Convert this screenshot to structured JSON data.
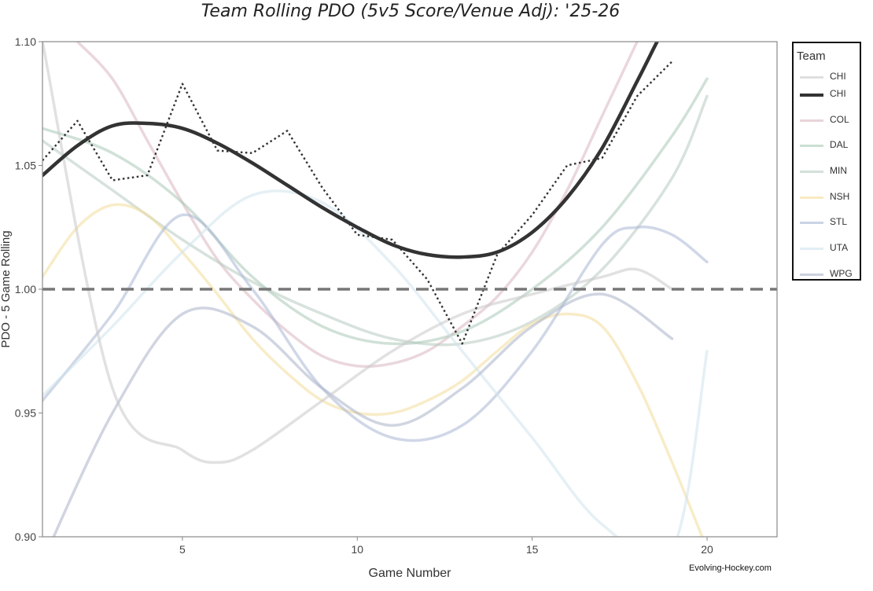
{
  "chart_data": {
    "type": "line",
    "title": "Team Rolling PDO (5v5 Score/Venue Adj): '25-26",
    "xlabel": "Game Number",
    "ylabel": "PDO - 5 Game Rolling",
    "xlim": [
      1,
      22
    ],
    "ylim": [
      0.9,
      1.1
    ],
    "x_ticks": [
      5,
      10,
      15,
      20
    ],
    "y_ticks": [
      "0.90",
      "0.95",
      "1.00",
      "1.05",
      "1.10"
    ],
    "reference_line": 1.0,
    "grid": false,
    "legend_title": "Team",
    "legend_position": "right",
    "credit": "Evolving-Hockey.com",
    "legend": [
      {
        "label": "CHI",
        "color": "#c9c9c9",
        "style": "faded"
      },
      {
        "label": "CHI",
        "color": "#333333",
        "style": "bold"
      },
      {
        "label": "COL",
        "color": "#d8b7c0",
        "style": "faded"
      },
      {
        "label": "DAL",
        "color": "#a9c9b6",
        "style": "faded"
      },
      {
        "label": "MIN",
        "color": "#b7cbbf",
        "style": "faded"
      },
      {
        "label": "NSH",
        "color": "#f3dc9a",
        "style": "faded"
      },
      {
        "label": "STL",
        "color": "#a9b7d3",
        "style": "faded"
      },
      {
        "label": "UTA",
        "color": "#cfe3ec",
        "style": "faded"
      },
      {
        "label": "WPG",
        "color": "#aab3c8",
        "style": "faded"
      }
    ],
    "series": [
      {
        "name": "CHI",
        "kind": "raw",
        "color": "#333333",
        "x": [
          1,
          2,
          3,
          4,
          5,
          6,
          7,
          8,
          9,
          10,
          11,
          12,
          13,
          14,
          15,
          16,
          17,
          18,
          19
        ],
        "y": [
          1.052,
          1.068,
          1.044,
          1.046,
          1.083,
          1.056,
          1.055,
          1.064,
          1.041,
          1.022,
          1.02,
          1.004,
          0.978,
          1.014,
          1.03,
          1.05,
          1.053,
          1.078,
          1.092
        ]
      },
      {
        "name": "CHI",
        "kind": "smooth",
        "color": "#333333",
        "x": [
          1,
          2,
          3,
          4,
          5,
          6,
          7,
          8,
          9,
          10,
          11,
          12,
          13,
          14,
          15,
          16,
          17,
          18,
          18.5,
          19
        ],
        "y": [
          1.046,
          1.058,
          1.066,
          1.067,
          1.065,
          1.059,
          1.051,
          1.042,
          1.033,
          1.025,
          1.018,
          1.014,
          1.013,
          1.015,
          1.023,
          1.037,
          1.057,
          1.084,
          1.098,
          1.112
        ]
      },
      {
        "name": "COL",
        "kind": "smooth",
        "color": "#d8b7c0",
        "x": [
          2,
          3,
          4,
          5,
          6,
          7,
          8,
          9,
          10,
          11,
          12,
          13,
          14,
          15,
          16,
          17,
          18
        ],
        "y": [
          1.1,
          1.085,
          1.06,
          1.035,
          1.012,
          0.996,
          0.983,
          0.973,
          0.969,
          0.97,
          0.975,
          0.985,
          0.997,
          1.015,
          1.04,
          1.07,
          1.1
        ]
      },
      {
        "name": "DAL",
        "kind": "smooth",
        "color": "#a9c9b6",
        "x": [
          1,
          3,
          5,
          7,
          9,
          11,
          13,
          15,
          17,
          19,
          20
        ],
        "y": [
          1.065,
          1.055,
          1.035,
          1.005,
          0.985,
          0.978,
          0.983,
          1.0,
          1.025,
          1.062,
          1.085
        ]
      },
      {
        "name": "MIN",
        "kind": "smooth",
        "color": "#b7cbbf",
        "x": [
          1,
          3,
          5,
          7,
          9,
          11,
          13,
          15,
          17,
          19,
          20
        ],
        "y": [
          1.06,
          1.04,
          1.02,
          1.003,
          0.99,
          0.98,
          0.978,
          0.987,
          1.008,
          1.045,
          1.078
        ]
      },
      {
        "name": "NSH",
        "kind": "smooth",
        "color": "#f3dc9a",
        "x": [
          1,
          2,
          3,
          4,
          5,
          6,
          7,
          8,
          9,
          10,
          11,
          12,
          13,
          14,
          15,
          16,
          17,
          18,
          19,
          20
        ],
        "y": [
          1.005,
          1.025,
          1.034,
          1.03,
          1.015,
          0.998,
          0.98,
          0.966,
          0.955,
          0.95,
          0.95,
          0.955,
          0.963,
          0.975,
          0.986,
          0.99,
          0.985,
          0.962,
          0.93,
          0.895
        ]
      },
      {
        "name": "STL",
        "kind": "smooth",
        "color": "#a9b7d3",
        "x": [
          1,
          3,
          5,
          7,
          9,
          11,
          13,
          15,
          17,
          18,
          19,
          20
        ],
        "y": [
          0.955,
          0.99,
          1.03,
          1.0,
          0.96,
          0.94,
          0.945,
          0.975,
          1.018,
          1.025,
          1.022,
          1.011
        ]
      },
      {
        "name": "UTA",
        "kind": "smooth",
        "color": "#cfe3ec",
        "x": [
          1,
          3,
          5,
          7,
          9,
          11,
          13,
          15,
          17,
          19,
          20
        ],
        "y": [
          0.957,
          0.985,
          1.015,
          1.038,
          1.035,
          1.01,
          0.975,
          0.94,
          0.905,
          0.895,
          0.975
        ]
      },
      {
        "name": "WPG",
        "kind": "smooth",
        "color": "#aab3c8",
        "x": [
          1,
          3,
          5,
          7,
          9,
          11,
          13,
          15,
          17,
          19
        ],
        "y": [
          0.89,
          0.95,
          0.99,
          0.985,
          0.96,
          0.945,
          0.96,
          0.985,
          0.998,
          0.98
        ]
      },
      {
        "name": "CHI",
        "kind": "smooth",
        "color": "#c9c9c9",
        "x": [
          1,
          3,
          5,
          6,
          7,
          9,
          11,
          13,
          15,
          17,
          18,
          19
        ],
        "y": [
          1.1,
          0.96,
          0.935,
          0.93,
          0.935,
          0.955,
          0.975,
          0.99,
          0.998,
          1.005,
          1.008,
          1.0
        ]
      }
    ]
  }
}
